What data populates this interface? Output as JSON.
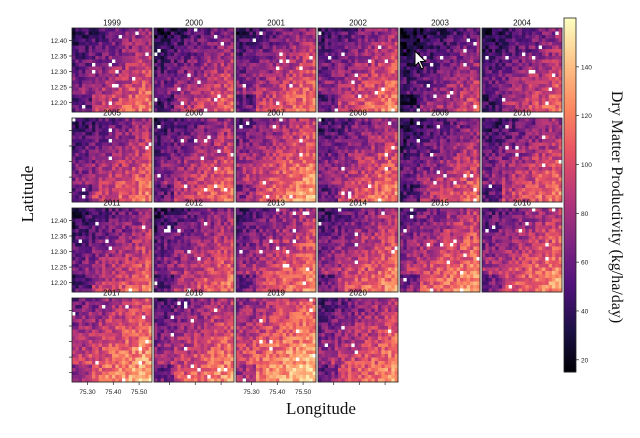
{
  "chart_data": {
    "type": "heatmap",
    "panels": [
      "1999",
      "2000",
      "2001",
      "2002",
      "2003",
      "2004",
      "2005",
      "2006",
      "2007",
      "2008",
      "2009",
      "2010",
      "2011",
      "2012",
      "2013",
      "2014",
      "2015",
      "2016",
      "2017",
      "2018",
      "2019",
      "2020"
    ],
    "xlabel": "Longitude",
    "ylabel": "Latitude",
    "x_ticks": [
      "75.30",
      "75.40",
      "75.50"
    ],
    "x_tick_values": [
      75.3,
      75.4,
      75.5
    ],
    "y_ticks": [
      "12.40",
      "12.35",
      "12.30",
      "12.25",
      "12.20"
    ],
    "y_tick_values": [
      12.4,
      12.35,
      12.3,
      12.25,
      12.2
    ],
    "xlim": [
      75.24,
      75.55
    ],
    "ylim": [
      12.17,
      12.44
    ],
    "colorbar": {
      "label": "Dry Matter Productivity (kg/ha/day)",
      "ticks": [
        "140",
        "120",
        "100",
        "80",
        "60",
        "40",
        "20"
      ],
      "tick_values": [
        140,
        120,
        100,
        80,
        60,
        40,
        20
      ],
      "range": [
        15,
        160
      ]
    },
    "colormap": [
      "#000004",
      "#1d1147",
      "#51127c",
      "#822681",
      "#b73779",
      "#e75263",
      "#fc8961",
      "#fec287",
      "#fcfdbf"
    ],
    "missing_color": "#ffffff",
    "panel_mean_dmp": [
      78,
      72,
      80,
      82,
      62,
      72,
      80,
      80,
      95,
      83,
      73,
      80,
      76,
      78,
      86,
      85,
      92,
      90,
      100,
      88,
      108,
      88
    ]
  }
}
